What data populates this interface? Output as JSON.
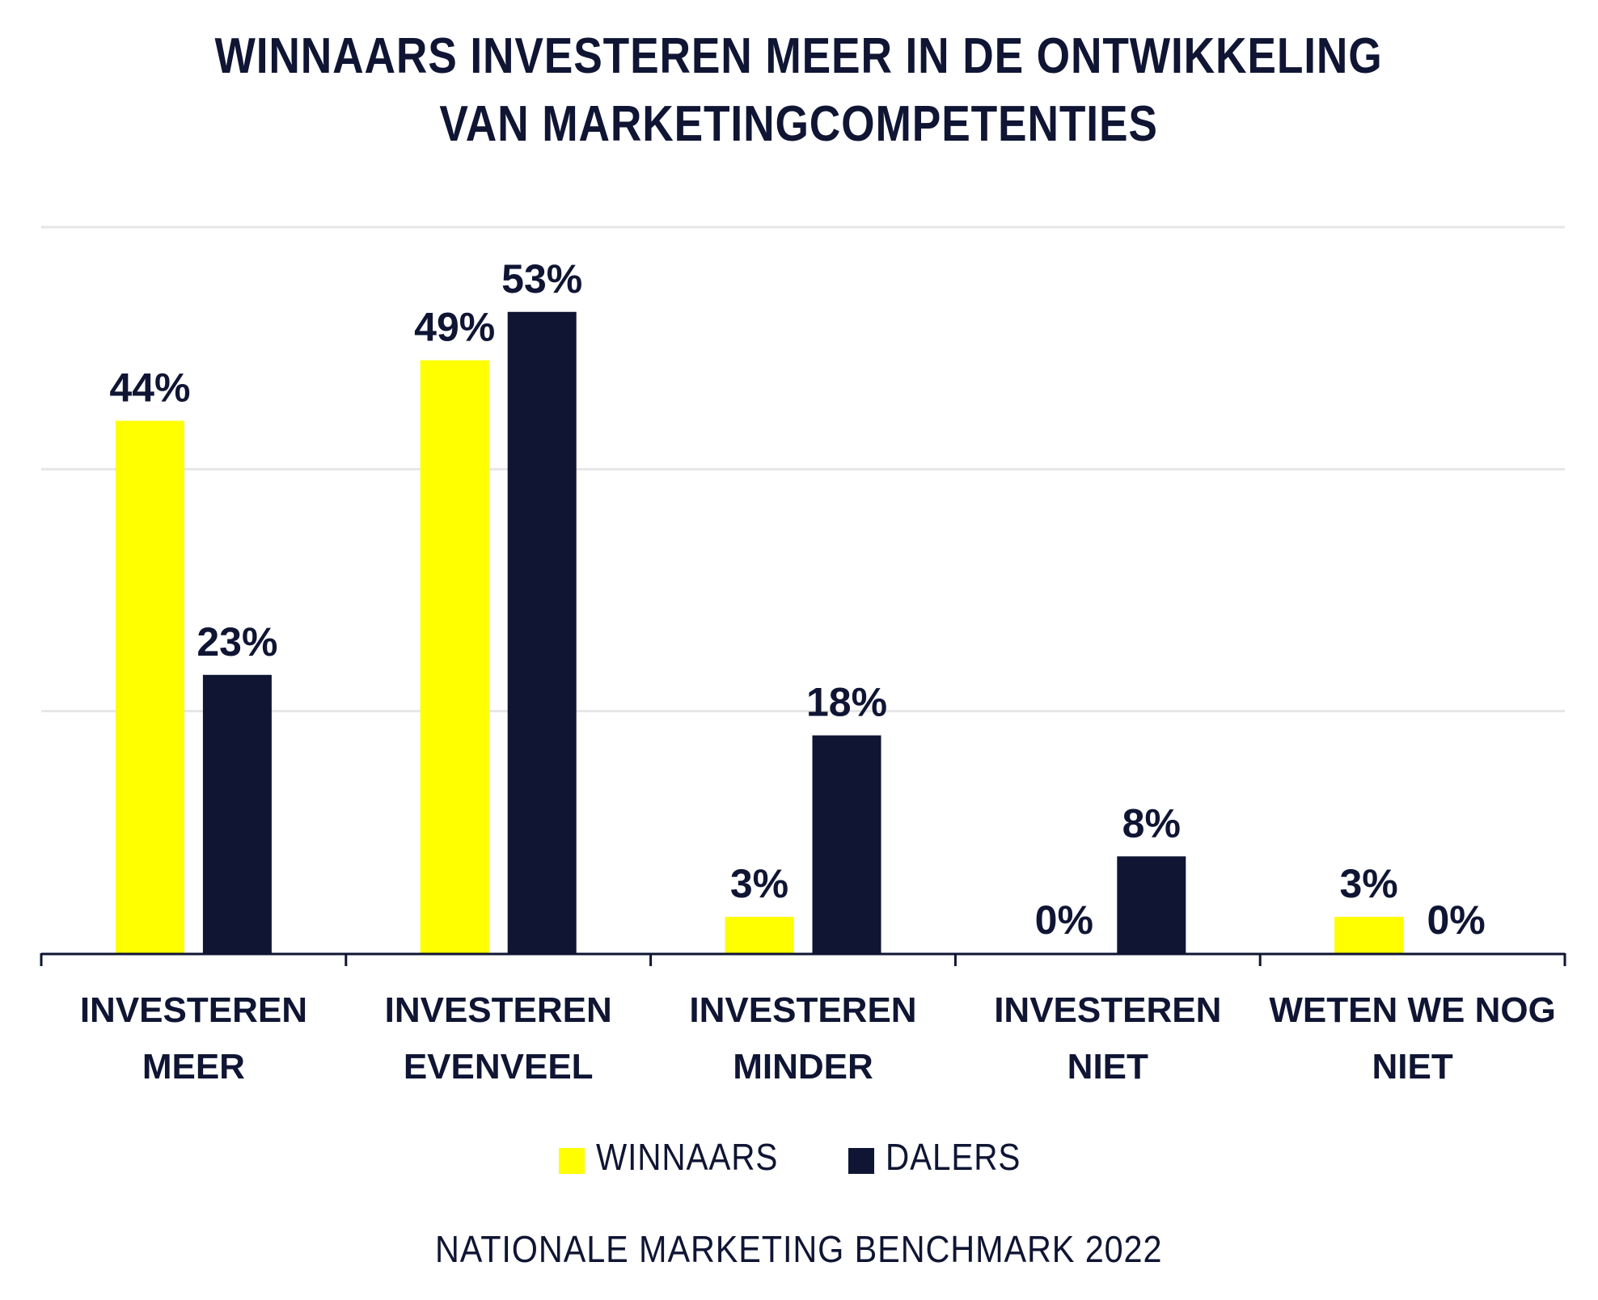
{
  "title": {
    "line1": "WINNAARS INVESTEREN MEER IN DE ONTWIKKELING",
    "line2": "VAN MARKETINGCOMPETENTIES"
  },
  "colors": {
    "winnaars": "#ffff00",
    "dalers": "#0f1533",
    "text": "#0f1533",
    "grid": "#e6e6e6"
  },
  "legend": {
    "items": [
      {
        "label": "WINNAARS",
        "color": "#ffff00"
      },
      {
        "label": "DALERS",
        "color": "#0f1533"
      }
    ]
  },
  "footer": "NATIONALE MARKETING BENCHMARK 2022",
  "chart_data": {
    "type": "bar",
    "title": "WINNAARS INVESTEREN MEER IN DE ONTWIKKELING VAN MARKETINGCOMPETENTIES",
    "xlabel": "",
    "ylabel": "",
    "ylim": [
      0,
      60
    ],
    "grid": true,
    "gridlines": [
      20,
      40,
      60
    ],
    "legend_position": "bottom",
    "categories": [
      [
        "INVESTEREN",
        "MEER"
      ],
      [
        "INVESTEREN",
        "EVENVEEL"
      ],
      [
        "INVESTEREN",
        "MINDER"
      ],
      [
        "INVESTEREN",
        "NIET"
      ],
      [
        "WETEN WE NOG",
        "NIET"
      ]
    ],
    "series": [
      {
        "name": "WINNAARS",
        "color": "#ffff00",
        "values": [
          44,
          49,
          3,
          0,
          3
        ],
        "labels": [
          "44%",
          "49%",
          "3%",
          "0%",
          "3%"
        ]
      },
      {
        "name": "DALERS",
        "color": "#0f1533",
        "values": [
          23,
          53,
          18,
          8,
          0
        ],
        "labels": [
          "23%",
          "53%",
          "18%",
          "8%",
          "0%"
        ]
      }
    ]
  }
}
